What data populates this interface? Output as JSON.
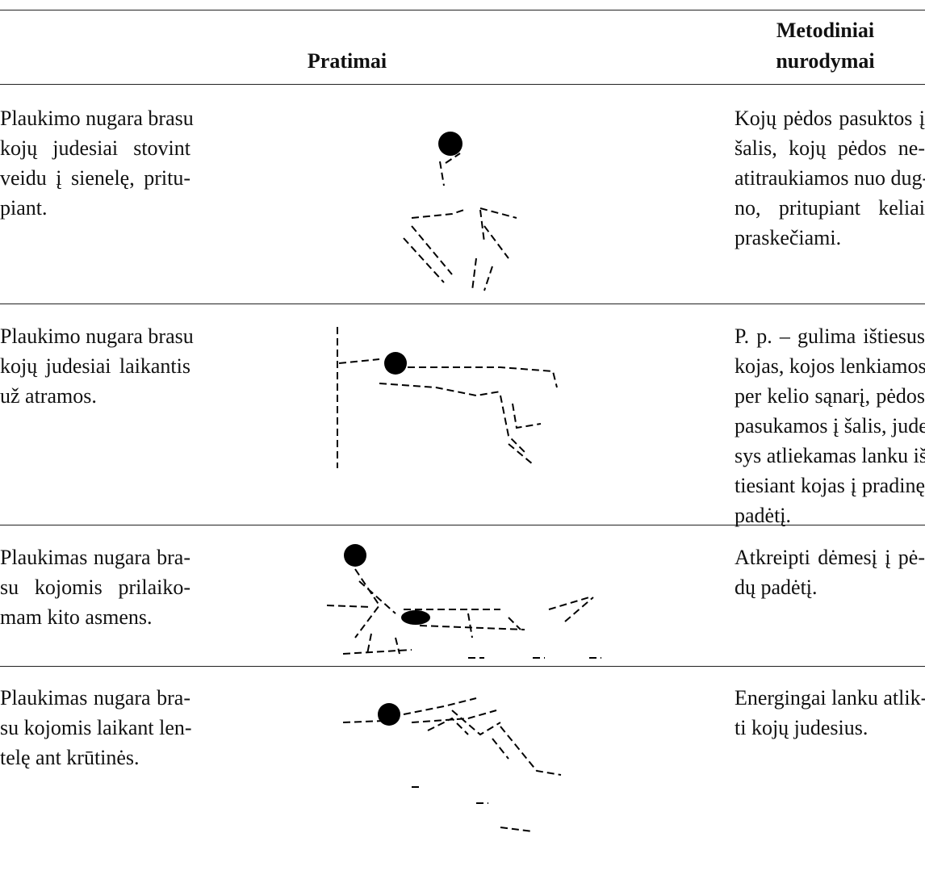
{
  "header": {
    "exercises": "Pratimai",
    "notes": [
      "Metodiniai",
      "nurodymai"
    ]
  },
  "rows": [
    {
      "exercise": [
        "Plaukimo nugara brasu",
        "kojų judesiai stovint",
        "veidu į sienelę, pritu-",
        "piant."
      ],
      "notes": [
        "Kojų pėdos pasuktos į",
        "šalis, kojų pėdos ne-",
        "atitraukiamos nuo dug-",
        "no, pritupiant keliai",
        "praskečiami."
      ]
    },
    {
      "exercise": [
        "Plaukimo nugara brasu",
        "kojų judesiai laikantis",
        "už atramos."
      ],
      "notes": [
        "P. p. – gulima ištiesus",
        "kojas, kojos lenkiamos",
        "per kelio sąnarį, pėdos",
        "pasukamos į šalis, jude-",
        "sys atliekamas lanku iš-",
        "tiesiant kojas į pradinę",
        "padėtį."
      ]
    },
    {
      "exercise": [
        "Plaukimas nugara bra-",
        "su kojomis prilaiko-",
        "mam kito asmens."
      ],
      "notes": [
        "Atkreipti dėmesį į pė-",
        "dų padėtį."
      ]
    },
    {
      "exercise": [
        "Plaukimas nugara bra-",
        "su kojomis laikant len-",
        "telę ant krūtinės."
      ],
      "notes": [
        "Energingai lanku atlik-",
        "ti kojų judesius."
      ]
    }
  ]
}
